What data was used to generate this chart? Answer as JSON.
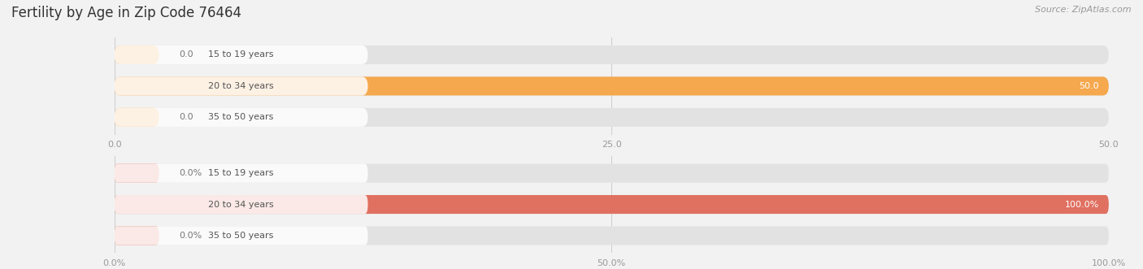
{
  "title": "Fertility by Age in Zip Code 76464",
  "source": "Source: ZipAtlas.com",
  "background_color": "#f2f2f2",
  "top_chart": {
    "categories": [
      "15 to 19 years",
      "20 to 34 years",
      "35 to 50 years"
    ],
    "values": [
      0.0,
      50.0,
      0.0
    ],
    "xlim": [
      0,
      50
    ],
    "xticks": [
      0.0,
      25.0,
      50.0
    ],
    "xticklabels": [
      "0.0",
      "25.0",
      "50.0"
    ],
    "bar_color": "#f5a84e",
    "bar_bg": "#e2e2e2",
    "label_bg": "#ffffff"
  },
  "bottom_chart": {
    "categories": [
      "15 to 19 years",
      "20 to 34 years",
      "35 to 50 years"
    ],
    "values": [
      0.0,
      100.0,
      0.0
    ],
    "xlim": [
      0,
      100
    ],
    "xticks": [
      0.0,
      50.0,
      100.0
    ],
    "xticklabels": [
      "0.0%",
      "50.0%",
      "100.0%"
    ],
    "bar_color": "#e07060",
    "bar_bg": "#e2e2e2",
    "label_bg": "#ffffff"
  },
  "label_fontsize": 8.0,
  "value_fontsize": 8.0,
  "tick_fontsize": 8.0,
  "title_fontsize": 12,
  "source_fontsize": 8,
  "label_color": "#555555",
  "value_color_inside": "#ffffff",
  "value_color_outside": "#777777",
  "tick_color": "#999999",
  "title_color": "#333333",
  "source_color": "#999999"
}
